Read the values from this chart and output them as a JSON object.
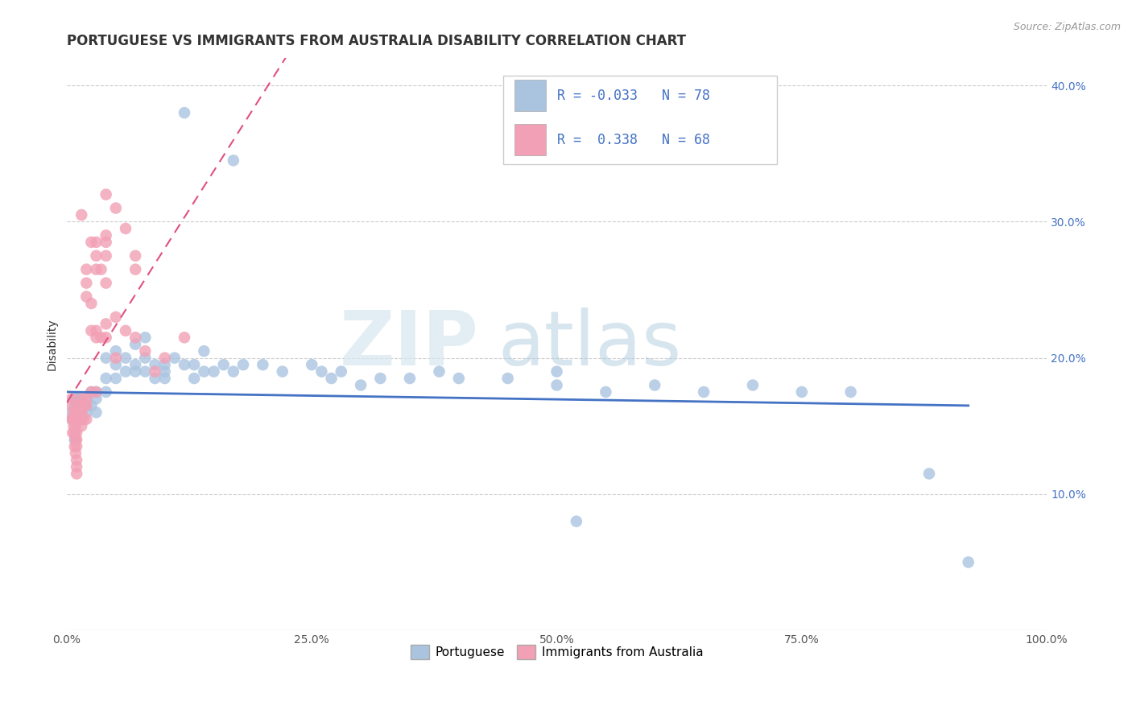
{
  "title": "PORTUGUESE VS IMMIGRANTS FROM AUSTRALIA DISABILITY CORRELATION CHART",
  "source": "Source: ZipAtlas.com",
  "ylabel": "Disability",
  "xlim": [
    0.0,
    1.0
  ],
  "ylim": [
    0.0,
    0.42
  ],
  "xtick_pos": [
    0.0,
    0.25,
    0.5,
    0.75,
    1.0
  ],
  "xtick_labels": [
    "0.0%",
    "25.0%",
    "50.0%",
    "75.0%",
    "100.0%"
  ],
  "ytick_pos": [
    0.0,
    0.1,
    0.2,
    0.3,
    0.4
  ],
  "ytick_labels_left": [
    "",
    "",
    "",
    "",
    ""
  ],
  "ytick_labels_right": [
    "",
    "10.0%",
    "20.0%",
    "30.0%",
    "40.0%"
  ],
  "legend_labels": [
    "Portuguese",
    "Immigrants from Australia"
  ],
  "blue_color": "#aac4e0",
  "pink_color": "#f2a0b5",
  "blue_line_color": "#4472c4",
  "pink_line_color": "#e05080",
  "R_blue": -0.033,
  "N_blue": 78,
  "R_pink": 0.338,
  "N_pink": 68,
  "watermark_zip": "ZIP",
  "watermark_atlas": "atlas",
  "blue_scatter": [
    [
      0.005,
      0.155
    ],
    [
      0.005,
      0.16
    ],
    [
      0.007,
      0.17
    ],
    [
      0.007,
      0.155
    ],
    [
      0.008,
      0.165
    ],
    [
      0.008,
      0.14
    ],
    [
      0.009,
      0.155
    ],
    [
      0.009,
      0.17
    ],
    [
      0.01,
      0.155
    ],
    [
      0.01,
      0.165
    ],
    [
      0.01,
      0.17
    ],
    [
      0.01,
      0.16
    ],
    [
      0.012,
      0.155
    ],
    [
      0.012,
      0.17
    ],
    [
      0.013,
      0.165
    ],
    [
      0.015,
      0.16
    ],
    [
      0.015,
      0.155
    ],
    [
      0.017,
      0.165
    ],
    [
      0.02,
      0.165
    ],
    [
      0.02,
      0.17
    ],
    [
      0.02,
      0.16
    ],
    [
      0.025,
      0.165
    ],
    [
      0.025,
      0.175
    ],
    [
      0.03,
      0.17
    ],
    [
      0.03,
      0.16
    ],
    [
      0.03,
      0.175
    ],
    [
      0.04,
      0.2
    ],
    [
      0.04,
      0.185
    ],
    [
      0.04,
      0.175
    ],
    [
      0.05,
      0.205
    ],
    [
      0.05,
      0.195
    ],
    [
      0.05,
      0.185
    ],
    [
      0.06,
      0.2
    ],
    [
      0.06,
      0.19
    ],
    [
      0.07,
      0.195
    ],
    [
      0.07,
      0.19
    ],
    [
      0.07,
      0.21
    ],
    [
      0.08,
      0.19
    ],
    [
      0.08,
      0.2
    ],
    [
      0.08,
      0.215
    ],
    [
      0.09,
      0.195
    ],
    [
      0.09,
      0.185
    ],
    [
      0.1,
      0.19
    ],
    [
      0.1,
      0.195
    ],
    [
      0.1,
      0.185
    ],
    [
      0.11,
      0.2
    ],
    [
      0.12,
      0.195
    ],
    [
      0.13,
      0.195
    ],
    [
      0.13,
      0.185
    ],
    [
      0.14,
      0.19
    ],
    [
      0.14,
      0.205
    ],
    [
      0.15,
      0.19
    ],
    [
      0.16,
      0.195
    ],
    [
      0.17,
      0.19
    ],
    [
      0.18,
      0.195
    ],
    [
      0.2,
      0.195
    ],
    [
      0.22,
      0.19
    ],
    [
      0.25,
      0.195
    ],
    [
      0.26,
      0.19
    ],
    [
      0.27,
      0.185
    ],
    [
      0.28,
      0.19
    ],
    [
      0.3,
      0.18
    ],
    [
      0.32,
      0.185
    ],
    [
      0.35,
      0.185
    ],
    [
      0.38,
      0.19
    ],
    [
      0.4,
      0.185
    ],
    [
      0.45,
      0.185
    ],
    [
      0.5,
      0.19
    ],
    [
      0.5,
      0.18
    ],
    [
      0.55,
      0.175
    ],
    [
      0.6,
      0.18
    ],
    [
      0.65,
      0.175
    ],
    [
      0.7,
      0.18
    ],
    [
      0.75,
      0.175
    ],
    [
      0.8,
      0.175
    ],
    [
      0.12,
      0.38
    ],
    [
      0.17,
      0.345
    ],
    [
      0.88,
      0.115
    ],
    [
      0.52,
      0.08
    ],
    [
      0.92,
      0.05
    ]
  ],
  "pink_scatter": [
    [
      0.005,
      0.155
    ],
    [
      0.005,
      0.165
    ],
    [
      0.005,
      0.17
    ],
    [
      0.006,
      0.155
    ],
    [
      0.006,
      0.145
    ],
    [
      0.007,
      0.16
    ],
    [
      0.007,
      0.15
    ],
    [
      0.008,
      0.155
    ],
    [
      0.008,
      0.145
    ],
    [
      0.008,
      0.135
    ],
    [
      0.009,
      0.15
    ],
    [
      0.009,
      0.14
    ],
    [
      0.009,
      0.13
    ],
    [
      0.01,
      0.155
    ],
    [
      0.01,
      0.16
    ],
    [
      0.01,
      0.145
    ],
    [
      0.01,
      0.14
    ],
    [
      0.01,
      0.135
    ],
    [
      0.01,
      0.125
    ],
    [
      0.01,
      0.12
    ],
    [
      0.01,
      0.115
    ],
    [
      0.012,
      0.155
    ],
    [
      0.012,
      0.165
    ],
    [
      0.013,
      0.16
    ],
    [
      0.014,
      0.155
    ],
    [
      0.015,
      0.16
    ],
    [
      0.015,
      0.17
    ],
    [
      0.015,
      0.15
    ],
    [
      0.017,
      0.165
    ],
    [
      0.017,
      0.155
    ],
    [
      0.02,
      0.17
    ],
    [
      0.02,
      0.165
    ],
    [
      0.02,
      0.155
    ],
    [
      0.02,
      0.245
    ],
    [
      0.02,
      0.255
    ],
    [
      0.02,
      0.265
    ],
    [
      0.025,
      0.175
    ],
    [
      0.025,
      0.22
    ],
    [
      0.025,
      0.24
    ],
    [
      0.03,
      0.22
    ],
    [
      0.03,
      0.215
    ],
    [
      0.03,
      0.175
    ],
    [
      0.03,
      0.265
    ],
    [
      0.03,
      0.275
    ],
    [
      0.03,
      0.285
    ],
    [
      0.035,
      0.215
    ],
    [
      0.035,
      0.265
    ],
    [
      0.04,
      0.225
    ],
    [
      0.04,
      0.215
    ],
    [
      0.04,
      0.275
    ],
    [
      0.04,
      0.285
    ],
    [
      0.04,
      0.32
    ],
    [
      0.05,
      0.23
    ],
    [
      0.05,
      0.2
    ],
    [
      0.05,
      0.31
    ],
    [
      0.06,
      0.22
    ],
    [
      0.06,
      0.295
    ],
    [
      0.07,
      0.215
    ],
    [
      0.07,
      0.275
    ],
    [
      0.08,
      0.205
    ],
    [
      0.09,
      0.19
    ],
    [
      0.1,
      0.2
    ],
    [
      0.12,
      0.215
    ],
    [
      0.04,
      0.255
    ],
    [
      0.015,
      0.305
    ],
    [
      0.04,
      0.29
    ],
    [
      0.025,
      0.285
    ],
    [
      0.07,
      0.265
    ]
  ],
  "title_fontsize": 12,
  "label_fontsize": 10,
  "tick_fontsize": 10,
  "legend_fontsize": 11
}
